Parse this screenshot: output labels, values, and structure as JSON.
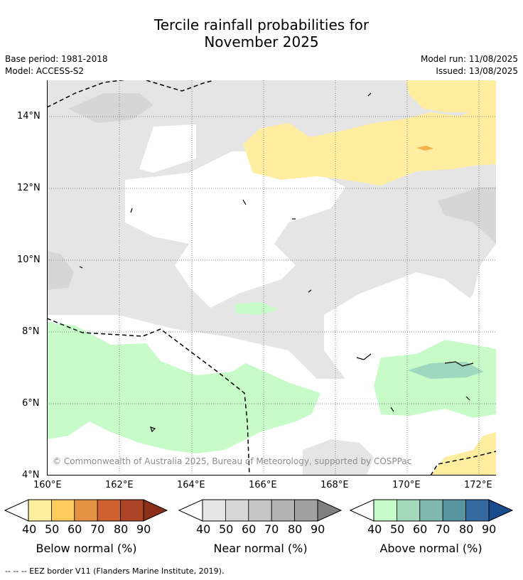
{
  "title": {
    "line1": "Tercile rainfall probabilities for",
    "line2": "November 2025"
  },
  "meta": {
    "base_period": "Base period: 1981-2018",
    "model": "Model: ACCESS-S2",
    "model_run": "Model run: 11/08/2025",
    "issued": "Issued: 13/08/2025"
  },
  "map": {
    "x_ticks": [
      "160°E",
      "162°E",
      "164°E",
      "166°E",
      "168°E",
      "170°E",
      "172°E"
    ],
    "y_ticks": [
      "14°N",
      "12°N",
      "10°N",
      "8°N",
      "6°N",
      "4°N"
    ],
    "copyright": "© Commonwealth of Australia 2025, Bureau of Meteorology, supported by COSPPac",
    "colors": {
      "near_normal_40": "#e5e5e5",
      "near_normal_50": "#d6d6d6",
      "below_normal_40": "#ffeda0",
      "below_normal_60": "#f6b04a",
      "above_normal_40": "#c7fcc9",
      "above_normal_50": "#9fd8be"
    }
  },
  "colorbars": [
    {
      "label": "Below normal (%)",
      "ticks": [
        "40",
        "50",
        "60",
        "70",
        "80",
        "90"
      ],
      "colors": [
        "#ffeda0",
        "#fecc5c",
        "#e39244",
        "#cf6030",
        "#ad4426",
        "#8c2f19"
      ]
    },
    {
      "label": "Near normal (%)",
      "ticks": [
        "40",
        "50",
        "60",
        "70",
        "80",
        "90"
      ],
      "colors": [
        "#e6e6e6",
        "#d7d7d7",
        "#c6c6c6",
        "#b3b3b3",
        "#a0a0a0",
        "#808080"
      ]
    },
    {
      "label": "Above normal (%)",
      "ticks": [
        "40",
        "50",
        "60",
        "70",
        "80",
        "90"
      ],
      "colors": [
        "#c7fcc9",
        "#a5d9bb",
        "#80b9b0",
        "#5995a0",
        "#346a9e",
        "#1a4b8c"
      ]
    }
  ],
  "footer": "--  --  -- EEZ border V11 (Flanders Marine Institute, 2019)."
}
